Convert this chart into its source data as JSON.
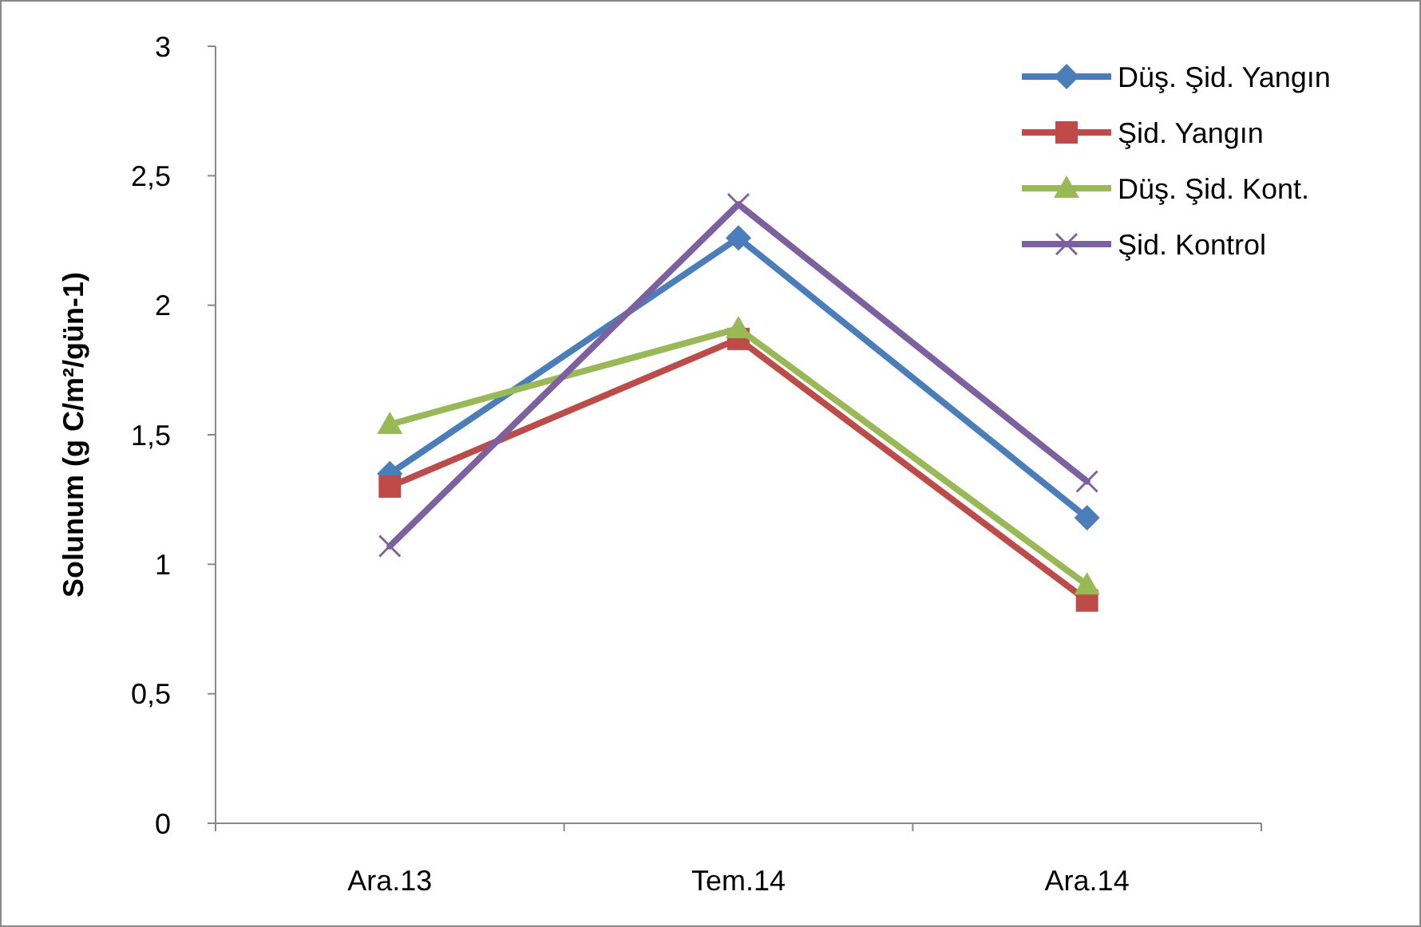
{
  "chart_data": {
    "type": "line",
    "ylabel": "Solunum (g C/m²/gün-1)",
    "categories": [
      "Ara.13",
      "Tem.14",
      "Ara.14"
    ],
    "series": [
      {
        "name": "Düş. Şid. Yangın",
        "color": "#4a7ebb",
        "marker": "diamond",
        "values": [
          1.35,
          2.26,
          1.18
        ]
      },
      {
        "name": "Şid. Yangın",
        "color": "#be4b48",
        "marker": "square",
        "values": [
          1.3,
          1.87,
          0.86
        ]
      },
      {
        "name": "Düş. Şid. Kont.",
        "color": "#98b954",
        "marker": "triangle",
        "values": [
          1.54,
          1.91,
          0.92
        ]
      },
      {
        "name": "Şid. Kontrol",
        "color": "#7d60a0",
        "marker": "cross",
        "values": [
          1.07,
          2.39,
          1.32
        ]
      }
    ],
    "ylim": [
      0,
      3
    ],
    "yticks": [
      0,
      {
        "value": 0.5,
        "label": "0,5"
      },
      1,
      {
        "value": 1.5,
        "label": "1,5"
      },
      2,
      {
        "value": 2.5,
        "label": "2,5"
      },
      3
    ],
    "grid": false,
    "legend": "top right",
    "line_style": "solid"
  }
}
